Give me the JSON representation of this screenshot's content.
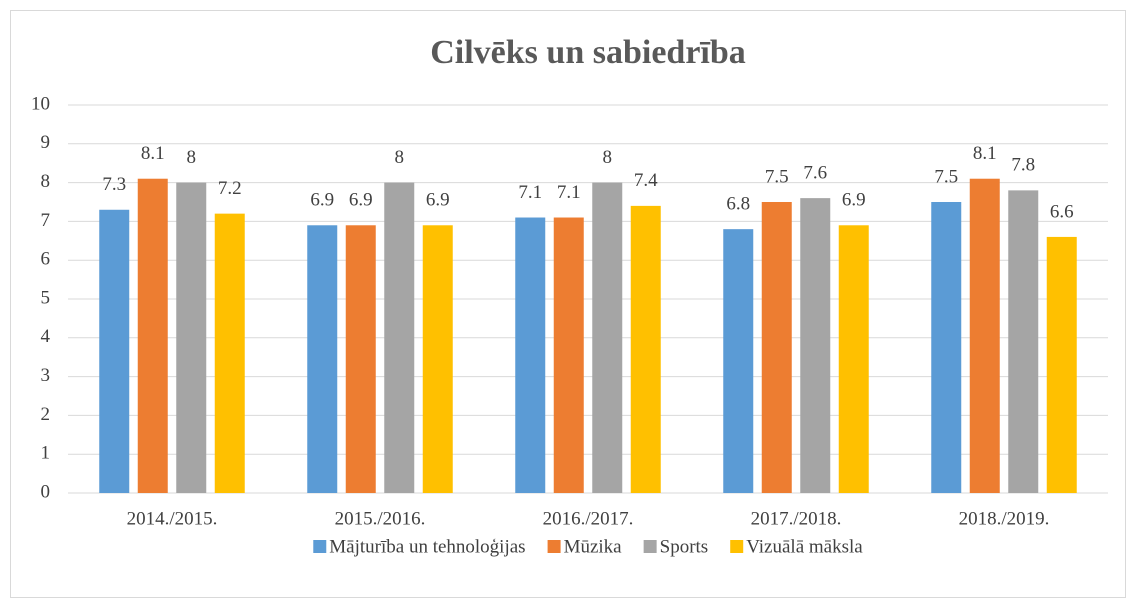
{
  "chart_data": {
    "type": "bar",
    "title": "Cilvēks un sabiedrība",
    "categories": [
      "2014./2015.",
      "2015./2016.",
      "2016./2017.",
      "2017./2018.",
      "2018./2019."
    ],
    "series": [
      {
        "name": "Mājturība un tehnoloģijas",
        "color": "#5b9bd5",
        "values": [
          7.3,
          6.9,
          7.1,
          6.8,
          7.5
        ]
      },
      {
        "name": "Mūzika",
        "color": "#ed7d31",
        "values": [
          8.1,
          6.9,
          7.1,
          7.5,
          8.1
        ]
      },
      {
        "name": "Sports",
        "color": "#a5a5a5",
        "values": [
          8,
          8,
          8,
          7.6,
          7.8
        ]
      },
      {
        "name": "Vizuālā māksla",
        "color": "#ffc000",
        "values": [
          7.2,
          6.9,
          7.4,
          6.9,
          6.6
        ]
      }
    ],
    "ylim": [
      0,
      10
    ],
    "yticks": [
      0,
      1,
      2,
      3,
      4,
      5,
      6,
      7,
      8,
      9,
      10
    ],
    "grid": true,
    "legend": "bottom"
  }
}
